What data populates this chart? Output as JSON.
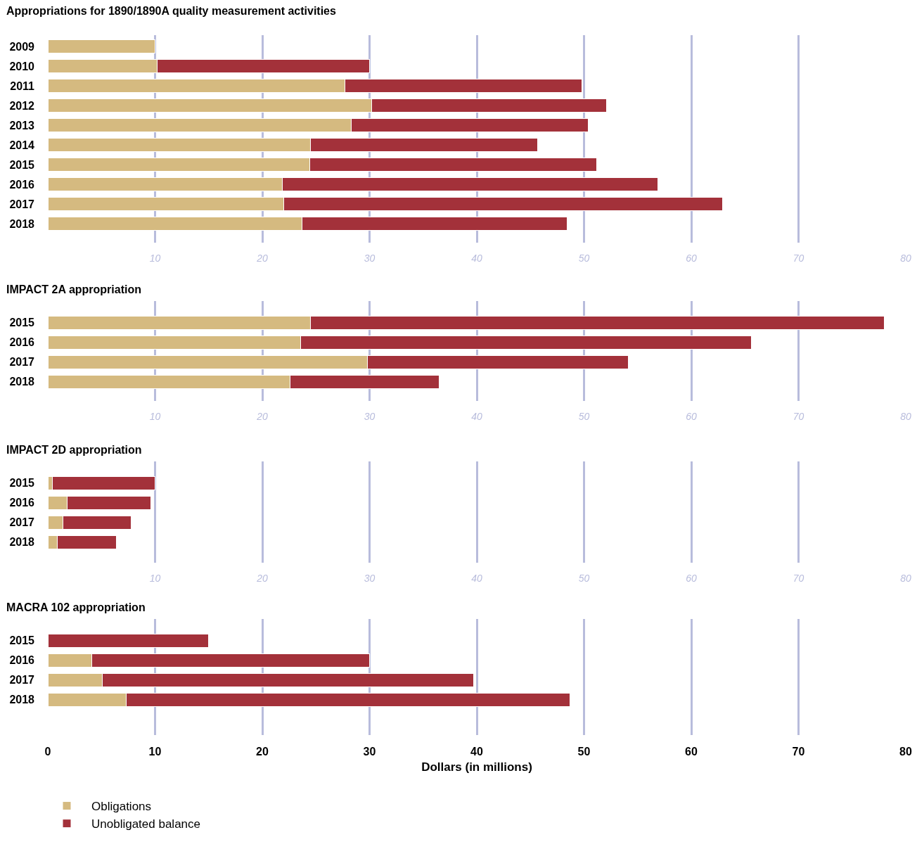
{
  "chart_data": [
    {
      "type": "bar",
      "orientation": "horizontal",
      "stacked": true,
      "title": "Appropriations for 1890/1890A quality measurement activities",
      "categories": [
        "2009",
        "2010",
        "2011",
        "2012",
        "2013",
        "2014",
        "2015",
        "2016",
        "2017",
        "2018"
      ],
      "series": [
        {
          "name": "Obligations",
          "color": "#d5ba80",
          "values": [
            10.0,
            10.2,
            27.7,
            30.2,
            28.3,
            24.5,
            24.4,
            21.9,
            22.0,
            23.7
          ]
        },
        {
          "name": "Unobligated balance",
          "color": "#a3313a",
          "values": [
            null,
            19.8,
            22.1,
            21.9,
            22.1,
            21.2,
            26.8,
            35.0,
            40.9,
            24.7
          ]
        }
      ],
      "xlim": [
        0,
        80
      ],
      "xticks": [
        10,
        20,
        30,
        40,
        50,
        60,
        70,
        80
      ],
      "grid": "x",
      "legend": "bottom left"
    },
    {
      "type": "bar",
      "orientation": "horizontal",
      "stacked": true,
      "title": "IMPACT 2A appropriation",
      "categories": [
        "2015",
        "2016",
        "2017",
        "2018"
      ],
      "series": [
        {
          "color": "#d5ba80",
          "values": [
            24.5,
            23.6,
            29.8,
            22.6
          ]
        },
        {
          "color": "#a3313a",
          "values": [
            53.5,
            42.0,
            24.3,
            13.9
          ]
        }
      ],
      "xlim": [
        0,
        80
      ],
      "xticks": [
        10,
        20,
        30,
        40,
        50,
        60,
        70,
        80
      ],
      "grid": "x"
    },
    {
      "type": "bar",
      "orientation": "horizontal",
      "stacked": true,
      "title": "IMPACT 2D appropriation",
      "categories": [
        "2015",
        "2016",
        "2017",
        "2018"
      ],
      "series": [
        {
          "color": "#d5ba80",
          "values": [
            0.4,
            1.8,
            1.4,
            0.9
          ]
        },
        {
          "color": "#a3313a",
          "values": [
            9.6,
            7.8,
            6.4,
            5.5
          ]
        }
      ],
      "xlim": [
        0,
        80
      ],
      "xticks": [
        10,
        20,
        30,
        40,
        50,
        60,
        70,
        80
      ],
      "grid": "x"
    },
    {
      "type": "bar",
      "orientation": "horizontal",
      "stacked": true,
      "title": "MACRA 102 appropriation",
      "categories": [
        "2015",
        "2016",
        "2017",
        "2018"
      ],
      "series": [
        {
          "color": "#d5ba80",
          "values": [
            null,
            4.1,
            5.1,
            7.3
          ]
        },
        {
          "color": "#a3313a",
          "values": [
            15.0,
            25.9,
            34.6,
            41.4
          ]
        }
      ],
      "xlim": [
        0,
        80
      ],
      "xticks": [
        0,
        10,
        20,
        30,
        40,
        50,
        60,
        70,
        80
      ],
      "grid": "x",
      "xlabel": "Dollars (in millions)"
    }
  ]
}
